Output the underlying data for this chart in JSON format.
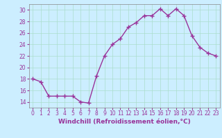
{
  "x": [
    0,
    1,
    2,
    3,
    4,
    5,
    6,
    7,
    8,
    9,
    10,
    11,
    12,
    13,
    14,
    15,
    16,
    17,
    18,
    19,
    20,
    21,
    22,
    23
  ],
  "y": [
    18,
    17.5,
    15,
    15,
    15,
    15,
    14,
    13.8,
    18.5,
    22,
    24,
    25,
    27,
    27.8,
    29,
    29,
    30.2,
    29,
    30.2,
    29,
    25.5,
    23.5,
    22.5,
    22
  ],
  "line_color": "#993399",
  "marker": "+",
  "marker_size": 4,
  "bg_color": "#cceeff",
  "grid_color": "#aaddcc",
  "xlabel": "Windchill (Refroidissement éolien,°C)",
  "ylim": [
    13,
    31
  ],
  "xlim": [
    -0.5,
    23.5
  ],
  "yticks": [
    14,
    16,
    18,
    20,
    22,
    24,
    26,
    28,
    30
  ],
  "xtick_labels": [
    "0",
    "1",
    "2",
    "3",
    "4",
    "5",
    "6",
    "7",
    "8",
    "9",
    "10",
    "11",
    "12",
    "13",
    "14",
    "15",
    "16",
    "17",
    "18",
    "19",
    "20",
    "21",
    "22",
    "23"
  ],
  "tick_color": "#993399",
  "label_color": "#993399",
  "label_fontsize": 6.5,
  "tick_fontsize": 5.5,
  "linewidth": 1.0,
  "markeredgewidth": 1.0
}
